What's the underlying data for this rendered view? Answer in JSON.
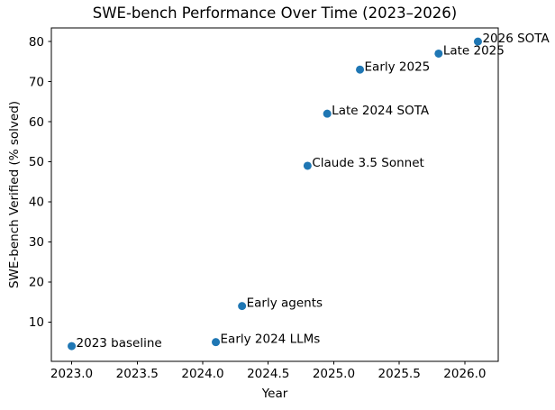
{
  "figure": {
    "background": "#ffffff"
  },
  "chart_data": {
    "type": "scatter",
    "title": "SWE-bench Performance Over Time (2023–2026)",
    "xlabel": "Year",
    "ylabel": "SWE-bench Verified (% solved)",
    "xlim": [
      2022.845,
      2026.255
    ],
    "ylim": [
      0.2,
      83.4
    ],
    "xticks": [
      2023.0,
      2023.5,
      2024.0,
      2024.5,
      2025.0,
      2025.5,
      2026.0
    ],
    "xtick_labels": [
      "2023.0",
      "2023.5",
      "2024.0",
      "2024.5",
      "2025.0",
      "2025.5",
      "2026.0"
    ],
    "yticks": [
      10,
      20,
      30,
      40,
      50,
      60,
      70,
      80
    ],
    "ytick_labels": [
      "10",
      "20",
      "30",
      "40",
      "50",
      "60",
      "70",
      "80"
    ],
    "grid": false,
    "legend": "none",
    "colors": {
      "marker": "#1f77b4",
      "text": "#000000",
      "spine": "#000000",
      "background": "#ffffff"
    },
    "points": [
      {
        "x": 2023.0,
        "y": 4,
        "label": "2023 baseline"
      },
      {
        "x": 2024.1,
        "y": 5,
        "label": "Early 2024 LLMs"
      },
      {
        "x": 2024.3,
        "y": 14,
        "label": "Early agents"
      },
      {
        "x": 2024.8,
        "y": 49,
        "label": "Claude 3.5 Sonnet"
      },
      {
        "x": 2024.95,
        "y": 62,
        "label": "Late 2024 SOTA"
      },
      {
        "x": 2025.2,
        "y": 73,
        "label": "Early 2025"
      },
      {
        "x": 2025.8,
        "y": 77,
        "label": "Late 2025"
      },
      {
        "x": 2026.1,
        "y": 80,
        "label": "2026 SOTA"
      }
    ]
  }
}
